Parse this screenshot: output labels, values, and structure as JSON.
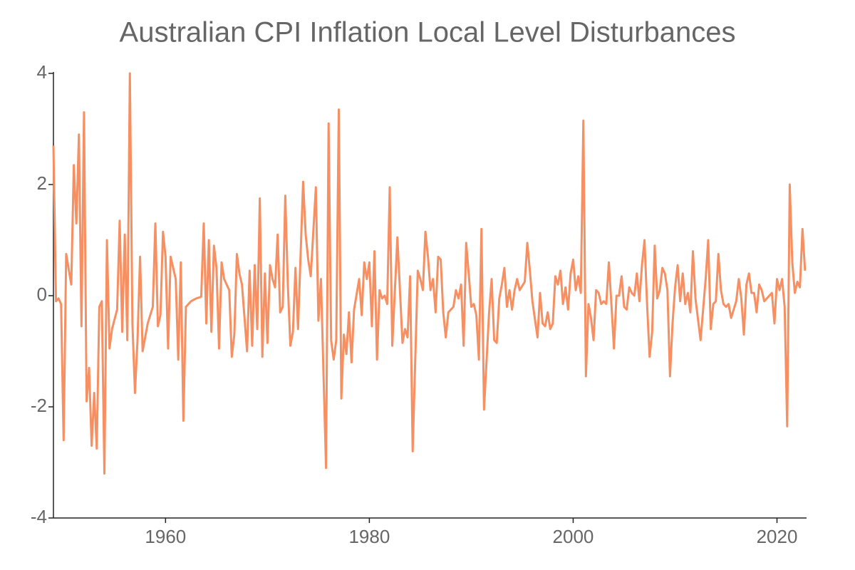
{
  "chart_data": {
    "type": "line",
    "title": "Australian CPI Inflation Local Level Disturbances",
    "xlim": [
      1949,
      2022.9
    ],
    "ylim": [
      -4,
      4
    ],
    "xticks": [
      1960,
      1980,
      2000,
      2020
    ],
    "yticks": [
      -4,
      -2,
      0,
      2,
      4
    ],
    "grid": false,
    "series": [
      {
        "color": "#f68f61",
        "x": [
          1949,
          1949.25,
          1949.5,
          1949.75,
          1950,
          1950.25,
          1950.75,
          1951,
          1951.25,
          1951.5,
          1951.75,
          1952,
          1952.25,
          1952.5,
          1952.75,
          1953,
          1953.25,
          1953.5,
          1953.75,
          1954,
          1954.25,
          1954.5,
          1954.75,
          1955.25,
          1955.5,
          1955.75,
          1956,
          1956.25,
          1956.5,
          1956.75,
          1957,
          1957.25,
          1957.5,
          1957.75,
          1958.25,
          1958.75,
          1959,
          1959.25,
          1959.5,
          1959.75,
          1960,
          1960.25,
          1960.5,
          1961,
          1961.25,
          1961.5,
          1961.75,
          1962,
          1962.5,
          1963,
          1963.5,
          1963.75,
          1964,
          1964.25,
          1964.5,
          1964.75,
          1965,
          1965.25,
          1965.5,
          1965.75,
          1966.25,
          1966.5,
          1966.75,
          1967,
          1967.25,
          1967.5,
          1968,
          1968.25,
          1968.5,
          1968.75,
          1969,
          1969.25,
          1969.5,
          1969.75,
          1970,
          1970.25,
          1970.5,
          1970.75,
          1971,
          1971.25,
          1971.5,
          1971.75,
          1972,
          1972.25,
          1972.5,
          1972.75,
          1973,
          1973.5,
          1973.75,
          1974,
          1974.25,
          1974.75,
          1975,
          1975.25,
          1975.75,
          1976,
          1976.25,
          1976.5,
          1976.75,
          1977,
          1977.25,
          1977.5,
          1977.75,
          1978,
          1978.25,
          1978.5,
          1979,
          1979.25,
          1979.5,
          1979.75,
          1980,
          1980.25,
          1980.5,
          1980.75,
          1981,
          1981.25,
          1981.5,
          1981.75,
          1982,
          1982.25,
          1982.75,
          1983.25,
          1983.5,
          1983.75,
          1984,
          1984.25,
          1984.75,
          1985,
          1985.25,
          1985.5,
          1985.75,
          1986,
          1986.25,
          1986.5,
          1986.75,
          1987,
          1987.25,
          1987.5,
          1987.75,
          1988.25,
          1988.5,
          1988.75,
          1989,
          1989.25,
          1989.5,
          1989.75,
          1990,
          1990.25,
          1990.5,
          1990.75,
          1991,
          1991.25,
          1991.75,
          1992,
          1992.25,
          1992.5,
          1992.75,
          1993,
          1993.25,
          1993.5,
          1993.75,
          1994,
          1994.25,
          1994.5,
          1994.75,
          1995.25,
          1995.5,
          1995.75,
          1996,
          1996.5,
          1996.75,
          1997,
          1997.25,
          1997.5,
          1997.75,
          1998,
          1998.25,
          1998.5,
          1998.75,
          1999,
          1999.25,
          1999.5,
          1999.75,
          2000,
          2000.25,
          2000.5,
          2000.75,
          2001,
          2001.25,
          2001.5,
          2001.75,
          2002,
          2002.25,
          2002.5,
          2002.75,
          2003,
          2003.25,
          2003.5,
          2003.75,
          2004,
          2004.25,
          2004.5,
          2004.75,
          2005,
          2005.25,
          2005.5,
          2005.75,
          2006,
          2006.25,
          2006.5,
          2006.75,
          2007,
          2007.25,
          2007.5,
          2007.75,
          2008,
          2008.25,
          2008.5,
          2008.75,
          2009,
          2009.25,
          2009.5,
          2009.75,
          2010,
          2010.25,
          2010.5,
          2010.75,
          2011,
          2011.25,
          2011.5,
          2011.75,
          2012,
          2012.5,
          2013,
          2013.25,
          2013.5,
          2013.75,
          2014,
          2014.25,
          2014.5,
          2014.75,
          2015,
          2015.25,
          2015.5,
          2016,
          2016.25,
          2016.5,
          2016.75,
          2017,
          2017.25,
          2017.5,
          2017.75,
          2018,
          2018.25,
          2018.5,
          2018.75,
          2019.5,
          2019.75,
          2020,
          2020.25,
          2020.5,
          2020.75,
          2021,
          2021.25,
          2021.5,
          2021.75,
          2022,
          2022.25,
          2022.5,
          2022.75
        ],
        "values": [
          2.7,
          -0.1,
          -0.05,
          -0.15,
          -2.6,
          0.75,
          0.2,
          2.35,
          1.3,
          2.9,
          -0.55,
          3.3,
          -1.9,
          -1.3,
          -2.7,
          -1.75,
          -2.75,
          -0.2,
          -0.1,
          -3.2,
          1.0,
          -0.95,
          -0.6,
          -0.25,
          1.35,
          -0.65,
          1.1,
          -0.8,
          4.0,
          -0.5,
          -1.75,
          -0.8,
          0.7,
          -1.0,
          -0.5,
          -0.2,
          1.3,
          -0.55,
          -0.35,
          1.15,
          0.7,
          -0.95,
          0.7,
          0.3,
          -1.15,
          0.6,
          -2.25,
          -0.2,
          -0.1,
          -0.05,
          -0.02,
          1.3,
          -0.5,
          1.0,
          -0.65,
          0.9,
          0.5,
          -0.95,
          0.6,
          0.3,
          0.1,
          -1.1,
          -0.7,
          0.75,
          0.4,
          0.2,
          -1.0,
          0.45,
          -0.9,
          0.55,
          -0.6,
          1.75,
          -1.1,
          0.4,
          -0.85,
          0.55,
          0.3,
          0.15,
          1.1,
          -0.3,
          -0.2,
          1.8,
          0.2,
          -0.9,
          -0.65,
          0.5,
          -0.6,
          2.05,
          1.1,
          0.65,
          0.35,
          1.95,
          -0.45,
          0.3,
          -3.1,
          3.1,
          -0.8,
          -1.15,
          -0.8,
          3.35,
          -1.85,
          -0.7,
          -1.05,
          -0.3,
          -1.2,
          -0.25,
          0.3,
          -0.35,
          0.6,
          0.3,
          0.6,
          -0.55,
          0.8,
          -1.15,
          0.1,
          -0.05,
          0,
          -0.15,
          1.95,
          -0.9,
          1.05,
          -0.85,
          -0.6,
          -0.75,
          0.35,
          -2.8,
          0.45,
          0.3,
          0.1,
          1.15,
          0.7,
          0.1,
          0.3,
          -0.3,
          0.7,
          0.65,
          -0.3,
          -0.75,
          -0.3,
          -0.2,
          0.1,
          -0.05,
          0.2,
          -0.9,
          0.95,
          0.4,
          -0.2,
          -0.15,
          -0.35,
          -1.15,
          1.2,
          -2.05,
          -0.3,
          0.3,
          -0.8,
          -0.85,
          -0.05,
          0.2,
          0.5,
          -0.2,
          0.1,
          -0.25,
          0.1,
          0.3,
          0.1,
          0.25,
          0.95,
          0.45,
          -0.1,
          -0.75,
          0.05,
          -0.5,
          -0.55,
          -0.3,
          -0.6,
          -0.5,
          0.35,
          0.2,
          0.45,
          -0.15,
          0.15,
          -0.25,
          0.4,
          0.65,
          0.1,
          0.35,
          0.05,
          3.15,
          -1.45,
          -0.15,
          -0.4,
          -0.8,
          0.1,
          0.05,
          -0.15,
          -0.1,
          -0.15,
          0.6,
          -0.15,
          -0.95,
          0,
          0,
          0.35,
          -0.2,
          -0.25,
          0.15,
          0.05,
          0,
          0.4,
          -0.1,
          0.55,
          1.0,
          -0.15,
          -1.1,
          -0.65,
          0.9,
          -0.05,
          0.1,
          0.5,
          0.4,
          0.1,
          -1.45,
          -0.5,
          0.15,
          0.55,
          -0.1,
          0.4,
          -0.15,
          0.05,
          -0.3,
          0.8,
          -0.05,
          -0.8,
          0.3,
          1.0,
          -0.6,
          -0.15,
          -0.1,
          0.75,
          0.1,
          -0.15,
          -0.2,
          -0.15,
          -0.4,
          -0.1,
          0.3,
          -0.05,
          -0.7,
          0.2,
          0.4,
          0.05,
          0.05,
          -0.3,
          0.2,
          0.1,
          -0.1,
          0.05,
          -0.5,
          0.3,
          0.1,
          0.3,
          -0.2,
          -2.35,
          2.0,
          0.6,
          0.05,
          0.25,
          0.15,
          1.2,
          0.45
        ]
      }
    ]
  }
}
